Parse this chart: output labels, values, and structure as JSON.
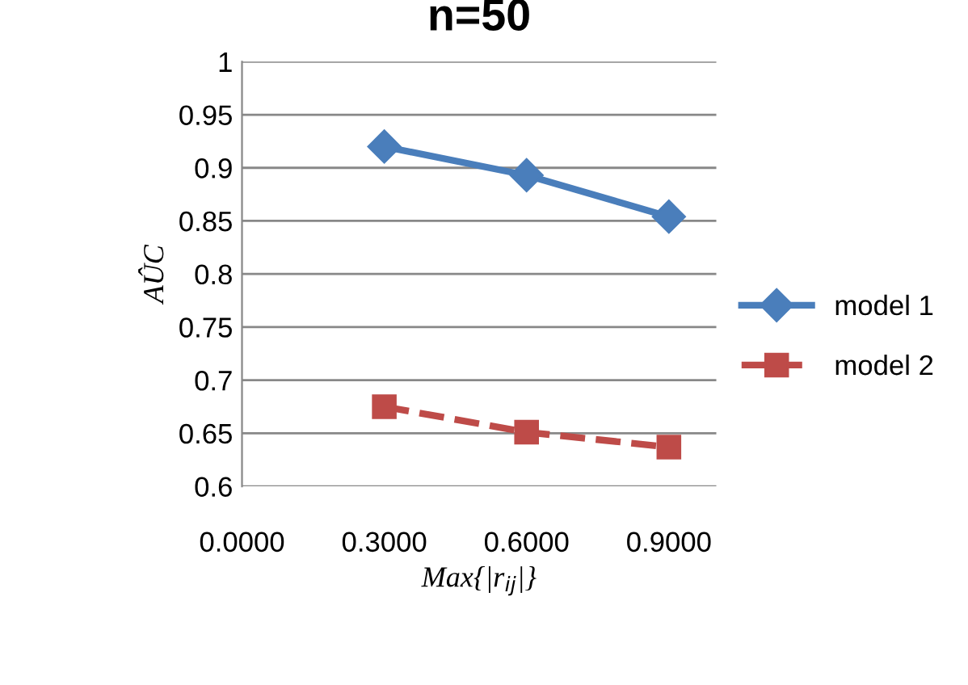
{
  "chart_data": {
    "type": "line",
    "title": "n=50",
    "xlabel": "Max{|r$_{ij}$|}",
    "ylabel": "AÛC",
    "x": [
      0.3,
      0.6,
      0.9
    ],
    "series": [
      {
        "name": "model 1",
        "color": "#4a7ebb",
        "values": [
          0.92,
          0.893,
          0.854
        ],
        "marker": "diamond",
        "line_style": "solid"
      },
      {
        "name": "model 2",
        "color": "#be4b48",
        "values": [
          0.675,
          0.651,
          0.637
        ],
        "marker": "square",
        "line_style": "dashed"
      }
    ],
    "xlim": [
      0,
      1.0
    ],
    "xticks": [
      {
        "value": 0,
        "label": "0.0000"
      },
      {
        "value": 0.3,
        "label": "0.3000"
      },
      {
        "value": 0.6,
        "label": "0.6000"
      },
      {
        "value": 0.9,
        "label": "0.9000"
      }
    ],
    "ylim": [
      0.6,
      1
    ],
    "yticks": [
      0.6,
      0.65,
      0.7,
      0.75,
      0.8,
      0.85,
      0.9,
      0.95,
      1
    ],
    "grid": "y",
    "legend": "right"
  }
}
